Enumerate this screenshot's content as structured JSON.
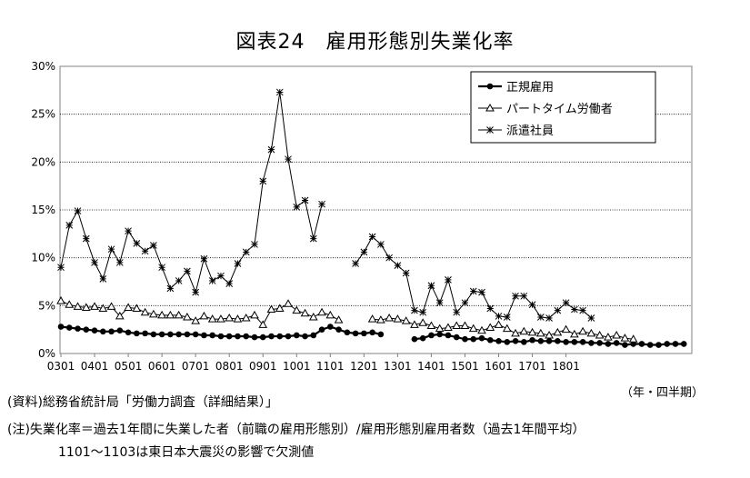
{
  "chart_data": {
    "type": "line",
    "title": "図表24　雇用形態別失業化率",
    "y_unit": "%",
    "ylim": [
      0,
      30
    ],
    "y_ticks": [
      "0%",
      "5%",
      "10%",
      "15%",
      "20%",
      "25%",
      "30%"
    ],
    "x_tick_labels": [
      "0301",
      "0401",
      "0501",
      "0601",
      "0701",
      "0801",
      "0901",
      "1001",
      "1101",
      "1201",
      "1301",
      "1401",
      "1501",
      "1601",
      "1701",
      "1801"
    ],
    "x_unit_label": "（年・四半期）",
    "grid": "horizontal",
    "legend_position": "top-right",
    "series": [
      {
        "name": "正規雇用",
        "marker": "circle",
        "color": "#000000",
        "values": [
          2.8,
          2.7,
          2.6,
          2.5,
          2.4,
          2.3,
          2.3,
          2.4,
          2.2,
          2.1,
          2.1,
          2.0,
          2.0,
          2.0,
          2.0,
          2.0,
          2.0,
          1.9,
          1.9,
          1.8,
          1.8,
          1.8,
          1.8,
          1.7,
          1.7,
          1.8,
          1.8,
          1.8,
          1.9,
          1.8,
          1.9,
          2.5,
          2.8,
          2.5,
          2.2,
          2.1,
          2.1,
          2.2,
          2.0,
          null,
          null,
          null,
          1.5,
          1.6,
          1.9,
          2.0,
          1.9,
          1.7,
          1.5,
          1.5,
          1.6,
          1.4,
          1.3,
          1.2,
          1.3,
          1.2,
          1.4,
          1.3,
          1.3,
          1.3,
          1.2,
          1.2,
          1.2,
          1.1,
          1.1,
          1.0,
          1.1,
          0.9,
          1.0,
          1.0,
          0.9,
          0.9,
          1.0,
          1.0,
          1.0
        ]
      },
      {
        "name": "パートタイム労働者",
        "marker": "triangle",
        "color": "#000000",
        "values": [
          5.5,
          5.1,
          4.9,
          4.8,
          4.9,
          4.7,
          4.9,
          3.9,
          4.8,
          4.7,
          4.3,
          4.1,
          4.0,
          4.0,
          4.0,
          3.8,
          3.4,
          3.9,
          3.6,
          3.6,
          3.7,
          3.6,
          3.7,
          4.0,
          3.0,
          4.6,
          4.7,
          5.2,
          4.5,
          4.2,
          3.8,
          4.3,
          4.0,
          3.5,
          null,
          null,
          null,
          3.6,
          3.5,
          3.7,
          3.6,
          3.4,
          3.0,
          3.2,
          2.9,
          2.6,
          2.7,
          2.9,
          2.9,
          2.6,
          2.4,
          2.7,
          3.0,
          2.6,
          2.1,
          2.3,
          2.2,
          2.1,
          1.9,
          2.2,
          2.5,
          2.0,
          2.3,
          2.1,
          1.9,
          1.7,
          1.9,
          1.6,
          1.5
        ]
      },
      {
        "name": "派遣社員",
        "marker": "star",
        "color": "#000000",
        "values": [
          9.0,
          13.4,
          14.9,
          12.0,
          9.5,
          7.8,
          10.9,
          9.5,
          12.8,
          11.5,
          10.7,
          11.3,
          9.0,
          6.8,
          7.6,
          8.6,
          6.4,
          9.9,
          7.6,
          8.1,
          7.3,
          9.4,
          10.6,
          11.4,
          18.0,
          21.3,
          27.3,
          20.3,
          15.3,
          16.0,
          12.0,
          15.6,
          null,
          null,
          null,
          9.4,
          10.6,
          12.2,
          11.4,
          10.0,
          9.2,
          8.4,
          4.5,
          4.3,
          7.1,
          5.3,
          7.7,
          4.3,
          5.3,
          6.5,
          6.4,
          4.7,
          3.9,
          3.8,
          6.0,
          6.0,
          5.1,
          3.8,
          3.7,
          4.5,
          5.3,
          4.6,
          4.5,
          3.7
        ]
      }
    ]
  },
  "notes": {
    "source": "(資料)総務省統計局「労働力調査（詳細結果）」",
    "definition": "(注)失業化率＝過去1年間に失業した者（前職の雇用形態別）/雇用形態別雇用者数（過去1年間平均）",
    "missing": "1101～1103は東日本大震災の影響で欠測値"
  }
}
